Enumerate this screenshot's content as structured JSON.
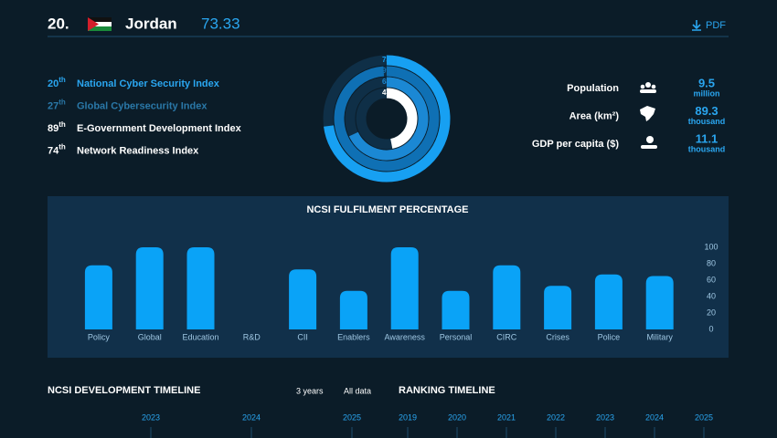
{
  "header": {
    "rank": "20.",
    "country": "Jordan",
    "score": "73.33",
    "pdf": "PDF"
  },
  "indices": [
    {
      "rank": "20",
      "suffix": "th",
      "name": "National Cyber Security Index",
      "color": "#2aa6f0"
    },
    {
      "rank": "27",
      "suffix": "th",
      "name": "Global Cybersecurity Index",
      "color": "#2a78a8"
    },
    {
      "rank": "89",
      "suffix": "th",
      "name": "E-Government Development Index",
      "color": "#ffffff"
    },
    {
      "rank": "74",
      "suffix": "th",
      "name": "Network Readiness Index",
      "color": "#ffffff"
    }
  ],
  "stats": [
    {
      "label": "Population",
      "value": "9.5",
      "unit": "million"
    },
    {
      "label": "Area (km²)",
      "value": "89.3",
      "unit": "thousand"
    },
    {
      "label": "GDP per capita ($)",
      "value": "11.1",
      "unit": "thousand"
    }
  ],
  "chart_data": [
    {
      "type": "radial",
      "values": [
        73,
        99,
        68,
        47
      ],
      "value_labels": [
        "73%",
        "99%",
        "68%",
        "47%"
      ],
      "colors": [
        "#17a0f2",
        "#0f70b4",
        "#1b88d4",
        "#ffffff"
      ]
    },
    {
      "type": "bar",
      "title": "NCSI FULFILMENT PERCENTAGE",
      "categories": [
        "Policy",
        "Global",
        "Education",
        "R&D",
        "CII",
        "Enablers",
        "Awareness",
        "Personal",
        "CIRC",
        "Crises",
        "Police",
        "Military"
      ],
      "values": [
        78,
        100,
        100,
        0,
        73,
        47,
        100,
        47,
        78,
        53,
        67,
        65
      ],
      "color": "#0aa3f7",
      "ylim": [
        0,
        100
      ],
      "yticks": [
        0,
        20,
        40,
        60,
        80,
        100
      ],
      "grid": false
    }
  ],
  "timelines": {
    "development": {
      "title": "NCSI DEVELOPMENT TIMELINE",
      "options": [
        "3 years",
        "All data"
      ],
      "years": [
        "2023",
        "2024",
        "2025"
      ]
    },
    "ranking": {
      "title": "RANKING TIMELINE",
      "years": [
        "2019",
        "2020",
        "2021",
        "2022",
        "2023",
        "2024",
        "2025"
      ]
    }
  }
}
